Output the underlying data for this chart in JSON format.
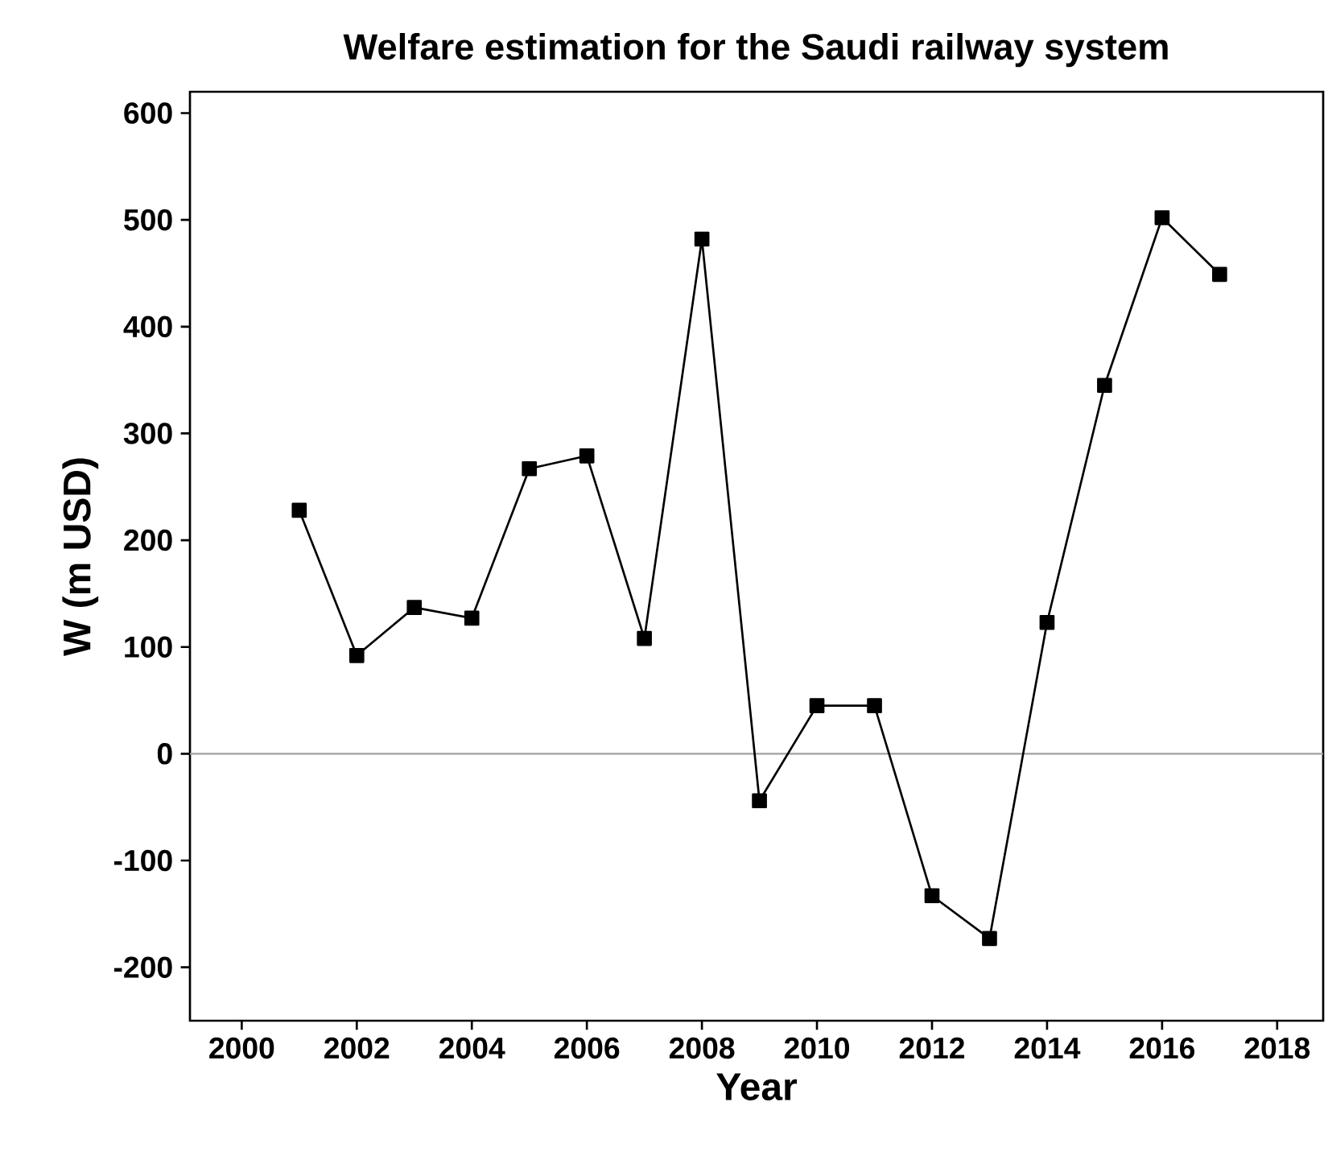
{
  "chart_data": {
    "type": "line",
    "title": "Welfare estimation for the Saudi railway system",
    "xlabel": "Year",
    "ylabel": "W (m USD)",
    "x": [
      2001,
      2002,
      2003,
      2004,
      2005,
      2006,
      2007,
      2008,
      2009,
      2010,
      2011,
      2012,
      2013,
      2014,
      2015,
      2016,
      2017
    ],
    "series": [
      {
        "color": "#000000",
        "values": [
          228,
          92,
          137,
          127,
          267,
          279,
          108,
          482,
          -44,
          45,
          45,
          -133,
          -173,
          123,
          345,
          502,
          449
        ]
      }
    ],
    "xlim": [
      1999.1,
      2018.8
    ],
    "ylim": [
      -250,
      620
    ],
    "xticks": [
      2000,
      2002,
      2004,
      2006,
      2008,
      2010,
      2012,
      2014,
      2016,
      2018
    ],
    "yticks": [
      -200,
      -100,
      0,
      100,
      200,
      300,
      400,
      500,
      600
    ],
    "ref_lines": [
      {
        "axis": "y",
        "value": 0,
        "color": "#a0a0a0"
      }
    ],
    "marker": "square",
    "line_style": "solid",
    "grid": false
  }
}
